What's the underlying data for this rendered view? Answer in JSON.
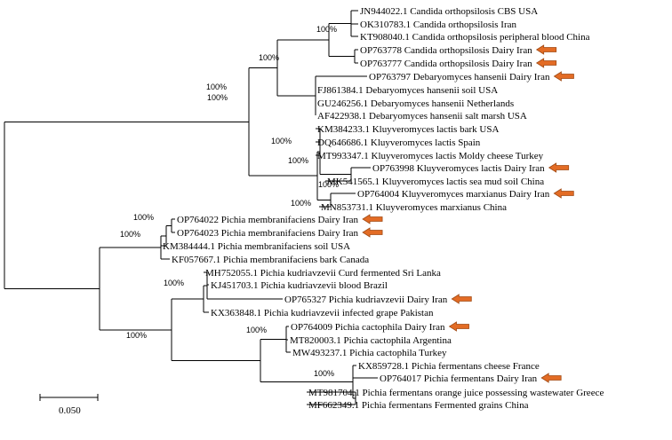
{
  "colors": {
    "line": "#000000",
    "arrow_fill": "#e36c25",
    "arrow_stroke": "#a04a14"
  },
  "leaves": [
    {
      "label": "JN944022.1 Candida orthopsilosis CBS USA",
      "arrow": false
    },
    {
      "label": "OK310783.1 Candida orthopsilosis Iran",
      "arrow": false
    },
    {
      "label": "KT908040.1 Candida orthopsilosis peripheral blood China",
      "arrow": false
    },
    {
      "label": "OP763778 Candida orthopsilosis Dairy Iran",
      "arrow": true
    },
    {
      "label": "OP763777 Candida orthopsilosis Dairy Iran",
      "arrow": true
    },
    {
      "label": "OP763797 Debaryomyces hansenii Dairy Iran",
      "arrow": true
    },
    {
      "label": "FJ861384.1 Debaryomyces hansenii soil USA",
      "arrow": false
    },
    {
      "label": "GU246256.1 Debaryomyces hansenii Netherlands",
      "arrow": false
    },
    {
      "label": "AF422938.1 Debaryomyces hansenii salt marsh USA",
      "arrow": false
    },
    {
      "label": "KM384233.1 Kluyveromyces lactis bark USA",
      "arrow": false
    },
    {
      "label": "DQ646686.1 Kluyveromyces lactis Spain",
      "arrow": false
    },
    {
      "label": "MT993347.1 Kluyveromyces lactis Moldy cheese Turkey",
      "arrow": false
    },
    {
      "label": "OP763998 Kluyveromyces lactis Dairy Iran",
      "arrow": true
    },
    {
      "label": "MK541565.1 Kluyveromyces lactis sea mud soil China",
      "arrow": false
    },
    {
      "label": "OP764004 Kluyveromyces marxianus Dairy Iran",
      "arrow": true
    },
    {
      "label": "MN853731.1 Kluyveromyces marxianus China",
      "arrow": false
    },
    {
      "label": "OP764022 Pichia membranifaciens Dairy Iran",
      "arrow": true
    },
    {
      "label": "OP764023 Pichia membranifaciens Dairy Iran",
      "arrow": true
    },
    {
      "label": "KM384444.1 Pichia membranifaciens soil USA",
      "arrow": false
    },
    {
      "label": "KF057667.1 Pichia membranifaciens bark Canada",
      "arrow": false
    },
    {
      "label": "MH752055.1 Pichia kudriavzevii Curd fermented Sri Lanka",
      "arrow": false
    },
    {
      "label": "KJ451703.1 Pichia kudriavzevii blood Brazil",
      "arrow": false
    },
    {
      "label": "OP765327 Pichia kudriavzevii Dairy Iran",
      "arrow": true
    },
    {
      "label": "KX363848.1 Pichia kudriavzevii infected grape Pakistan",
      "arrow": false
    },
    {
      "label": "OP764009 Pichia cactophila Dairy Iran",
      "arrow": true
    },
    {
      "label": "MT820003.1 Pichia cactophila Argentina",
      "arrow": false
    },
    {
      "label": "MW493237.1 Pichia cactophila Turkey",
      "arrow": false
    },
    {
      "label": "KX859728.1 Pichia fermentans cheese France",
      "arrow": false
    },
    {
      "label": "OP764017 Pichia fermentans Dairy Iran",
      "arrow": true
    },
    {
      "label": "MT981704.1 Pichia fermentans orange juice possessing wastewater Greece",
      "arrow": false
    },
    {
      "label": "MF662349.1 Pichia fermentans Fermented grains China",
      "arrow": false
    }
  ],
  "support_values": [
    "100%",
    "100%",
    "100%",
    "100%",
    "100%",
    "100%",
    "100%",
    "100%",
    "100%",
    "100%",
    "100%",
    "100%",
    "100%",
    "100%"
  ],
  "scale_bar": {
    "label": "0.050"
  }
}
